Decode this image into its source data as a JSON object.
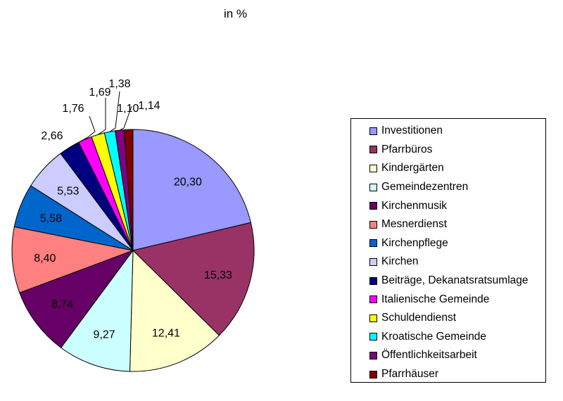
{
  "chart_data": {
    "type": "pie",
    "title": "in %",
    "slices": [
      {
        "label": "Investitionen",
        "value": 20.3,
        "display": "20,30",
        "color": "#9999FF"
      },
      {
        "label": "Pfarrbüros",
        "value": 15.33,
        "display": "15,33",
        "color": "#993366"
      },
      {
        "label": "Kindergärten",
        "value": 12.41,
        "display": "12,41",
        "color": "#FFFFCC"
      },
      {
        "label": "Gemeindezentren",
        "value": 9.27,
        "display": "9,27",
        "color": "#CCFFFF"
      },
      {
        "label": "Kirchenmusik",
        "value": 8.74,
        "display": "8,74",
        "color": "#660066"
      },
      {
        "label": "Mesnerdienst",
        "value": 8.4,
        "display": "8,40",
        "color": "#FF8080"
      },
      {
        "label": "Kirchenpflege",
        "value": 5.58,
        "display": "5,58",
        "color": "#0066CC"
      },
      {
        "label": "Kirchen",
        "value": 5.53,
        "display": "5,53",
        "color": "#CCCCFF"
      },
      {
        "label": "Beiträge, Dekanatsratsumlage",
        "value": 2.66,
        "display": "2,66",
        "color": "#000080"
      },
      {
        "label": "Italienische Gemeinde",
        "value": 1.76,
        "display": "1,76",
        "color": "#FF00FF"
      },
      {
        "label": "Schuldendienst",
        "value": 1.69,
        "display": "1,69",
        "color": "#FFFF00"
      },
      {
        "label": "Kroatische Gemeinde",
        "value": 1.38,
        "display": "1,38",
        "color": "#00FFFF"
      },
      {
        "label": "Öffentlichkeitsarbeit",
        "value": 1.14,
        "display": "1,14",
        "color": "#800080"
      },
      {
        "label": "Pfarrhäuser",
        "value": 1.1,
        "display": "1,10",
        "color": "#800000"
      }
    ],
    "legend_position": "right"
  }
}
